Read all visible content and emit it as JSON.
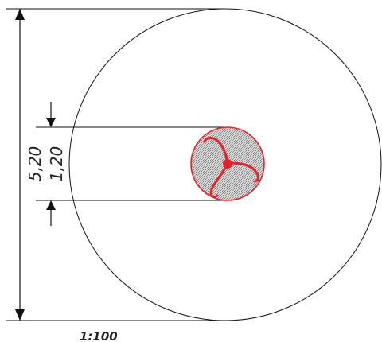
{
  "drawing": {
    "outer_dimension": "5,20",
    "inner_dimension": "1,20",
    "scale": "1:100"
  },
  "colors": {
    "line": "#111111",
    "accent": "#e0242b",
    "hatch": "#9a9a9a"
  }
}
